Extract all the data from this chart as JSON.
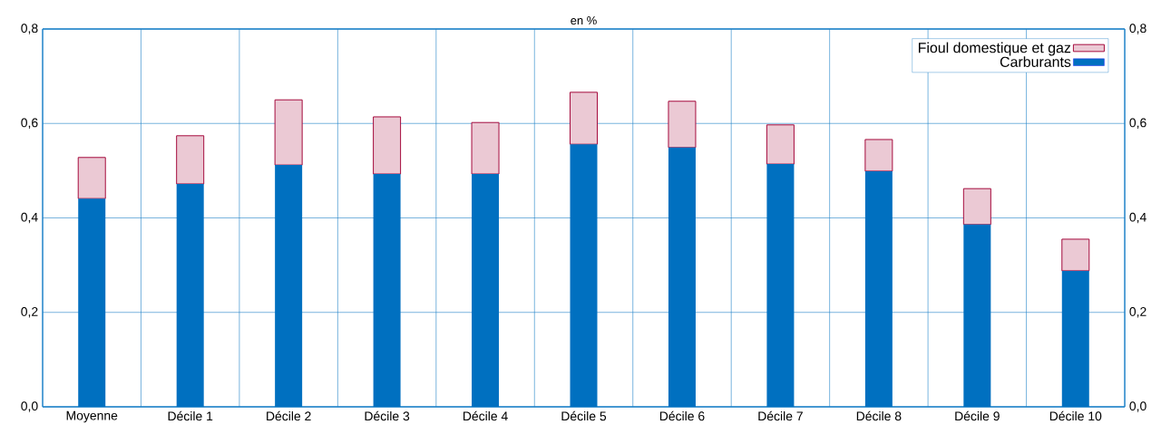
{
  "chart_data": {
    "type": "bar",
    "stacked": true,
    "ylabel": "en %",
    "categories": [
      "Moyenne",
      "Décile 1",
      "Décile 2",
      "Décile 3",
      "Décile 4",
      "Décile 5",
      "Décile 6",
      "Décile 7",
      "Décile 8",
      "Décile 9",
      "Décile 10"
    ],
    "series": [
      {
        "name": "Carburants",
        "color": "#0070c0",
        "values": [
          0.441,
          0.472,
          0.512,
          0.493,
          0.493,
          0.556,
          0.549,
          0.514,
          0.499,
          0.386,
          0.288
        ]
      },
      {
        "name": "Fioul domestique et gaz",
        "color": "#a50a3c",
        "values": [
          0.087,
          0.102,
          0.138,
          0.121,
          0.109,
          0.11,
          0.098,
          0.083,
          0.067,
          0.076,
          0.067
        ]
      }
    ],
    "ylim": [
      0,
      0.8
    ],
    "yticks": [
      {
        "value": 0,
        "label": "0,0"
      },
      {
        "value": 0.2,
        "label": "0,2"
      },
      {
        "value": 0.4,
        "label": "0,4"
      },
      {
        "value": 0.6,
        "label": "0,6"
      },
      {
        "value": 0.8,
        "label": "0,8"
      }
    ],
    "y2lim": [
      0,
      0.8
    ],
    "y2ticks": [
      {
        "value": 0,
        "label": "0,0"
      },
      {
        "value": 0.2,
        "label": "0,2"
      },
      {
        "value": 0.4,
        "label": "0,4"
      },
      {
        "value": 0.6,
        "label": "0,6"
      },
      {
        "value": 0.8,
        "label": "0,8"
      }
    ],
    "grid": true,
    "legend": "top right"
  }
}
